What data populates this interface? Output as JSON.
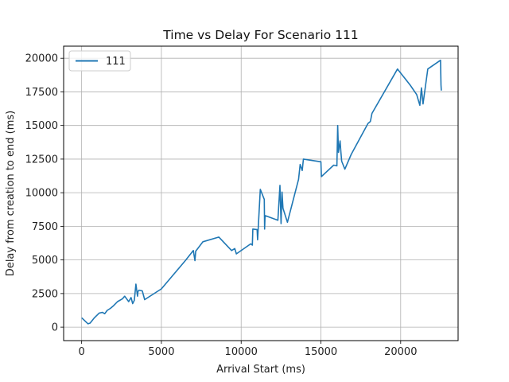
{
  "chart_data": {
    "type": "line",
    "title": "Time vs Delay For Scenario 111",
    "xlabel": "Arrival Start (ms)",
    "ylabel": "Delay from creation to end (ms)",
    "xlim": [
      -1130,
      23600
    ],
    "ylim": [
      -1000,
      20900
    ],
    "xticks": [
      0,
      5000,
      10000,
      15000,
      20000
    ],
    "xtick_labels": [
      "0",
      "5000",
      "10000",
      "15000",
      "20000"
    ],
    "yticks": [
      0,
      2500,
      5000,
      7500,
      10000,
      12500,
      15000,
      17500,
      20000
    ],
    "ytick_labels": [
      "0",
      "2500",
      "5000",
      "7500",
      "10000",
      "12500",
      "15000",
      "17500",
      "20000"
    ],
    "grid": true,
    "legend_position": "top-left",
    "series": [
      {
        "name": "111",
        "color": "#1f77b4",
        "x": [
          0,
          400,
          530,
          800,
          1100,
          1300,
          1450,
          1600,
          1800,
          2000,
          2250,
          2550,
          2700,
          2950,
          3100,
          3200,
          3300,
          3400,
          3500,
          3530,
          3600,
          3800,
          3950,
          5000,
          6500,
          7000,
          7100,
          7150,
          7600,
          8600,
          9400,
          9600,
          9700,
          10600,
          10700,
          10730,
          11000,
          11030,
          11200,
          11450,
          11470,
          11500,
          12300,
          12430,
          12500,
          12560,
          12620,
          12900,
          13600,
          13700,
          13830,
          13900,
          15000,
          15030,
          15800,
          16000,
          16050,
          16100,
          16200,
          16250,
          16300,
          16500,
          16900,
          17950,
          18100,
          18200,
          19800,
          20600,
          21000,
          21200,
          21300,
          21400,
          21700,
          22500,
          22530,
          22550
        ],
        "y": [
          700,
          250,
          300,
          700,
          1050,
          1100,
          1000,
          1250,
          1400,
          1600,
          1900,
          2100,
          2300,
          1900,
          2200,
          1750,
          2000,
          3200,
          2300,
          2650,
          2750,
          2700,
          2050,
          2850,
          4950,
          5700,
          4950,
          5650,
          6350,
          6700,
          5700,
          5850,
          5450,
          6200,
          6100,
          7300,
          7250,
          6500,
          10250,
          9500,
          7300,
          8300,
          7950,
          10550,
          7700,
          10050,
          8850,
          7800,
          11000,
          12100,
          11650,
          12500,
          12300,
          11200,
          12050,
          12000,
          15000,
          13000,
          13850,
          13050,
          12350,
          11750,
          12850,
          15150,
          15300,
          15900,
          19200,
          18000,
          17300,
          16500,
          17800,
          16600,
          19200,
          19850,
          18000,
          17600
        ]
      }
    ]
  }
}
